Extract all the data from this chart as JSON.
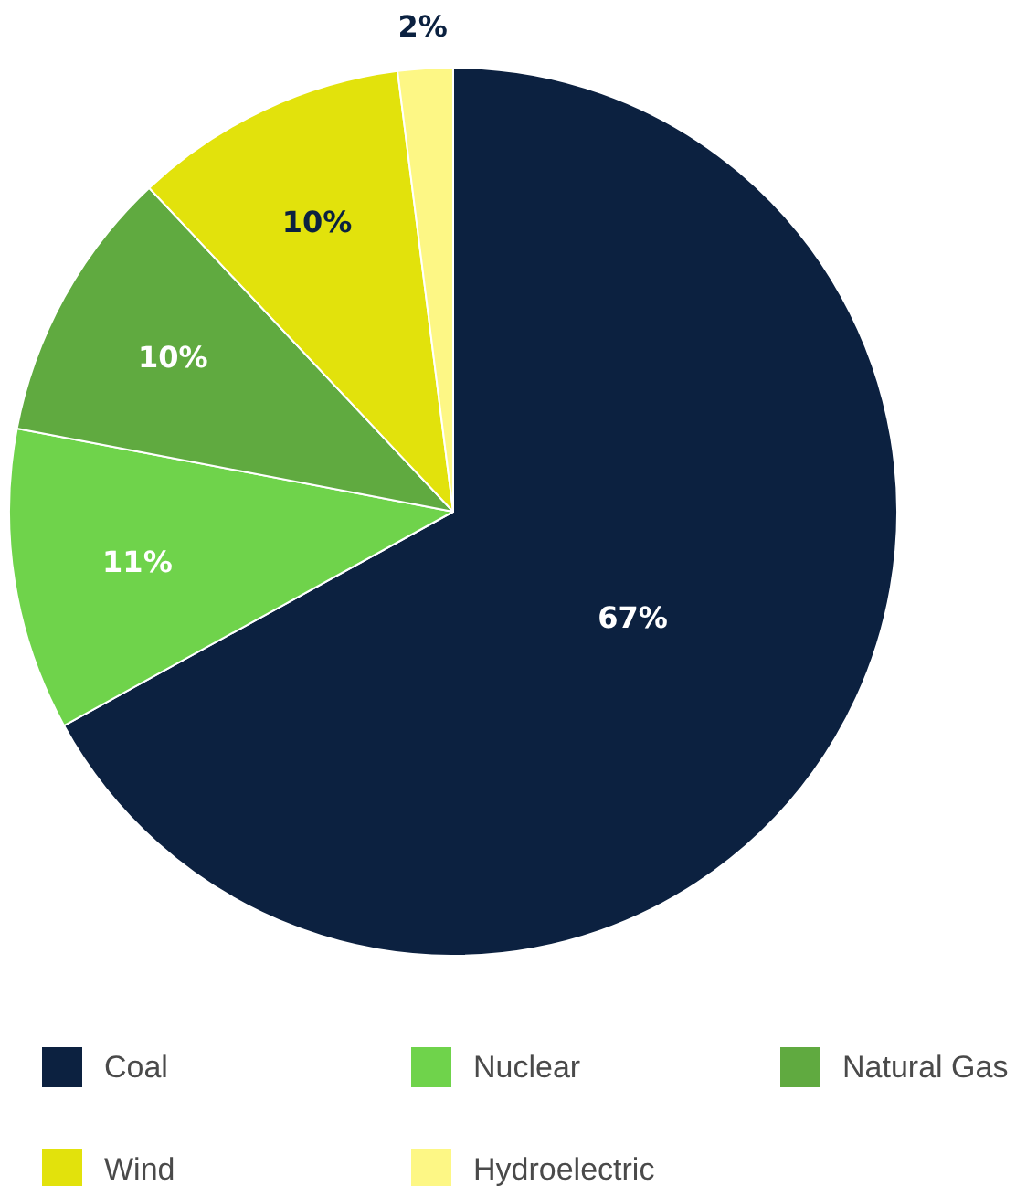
{
  "chart_data": {
    "type": "pie",
    "categories": [
      "Coal",
      "Nuclear",
      "Natural Gas",
      "Wind",
      "Hydroelectric"
    ],
    "values": [
      67,
      11,
      10,
      10,
      2
    ],
    "value_labels": [
      "67%",
      "11%",
      "10%",
      "10%",
      "2%"
    ],
    "colors": [
      "#0c2140",
      "#6fd34b",
      "#60aa40",
      "#e2e20c",
      "#fdf785"
    ],
    "legend": "bottom"
  }
}
